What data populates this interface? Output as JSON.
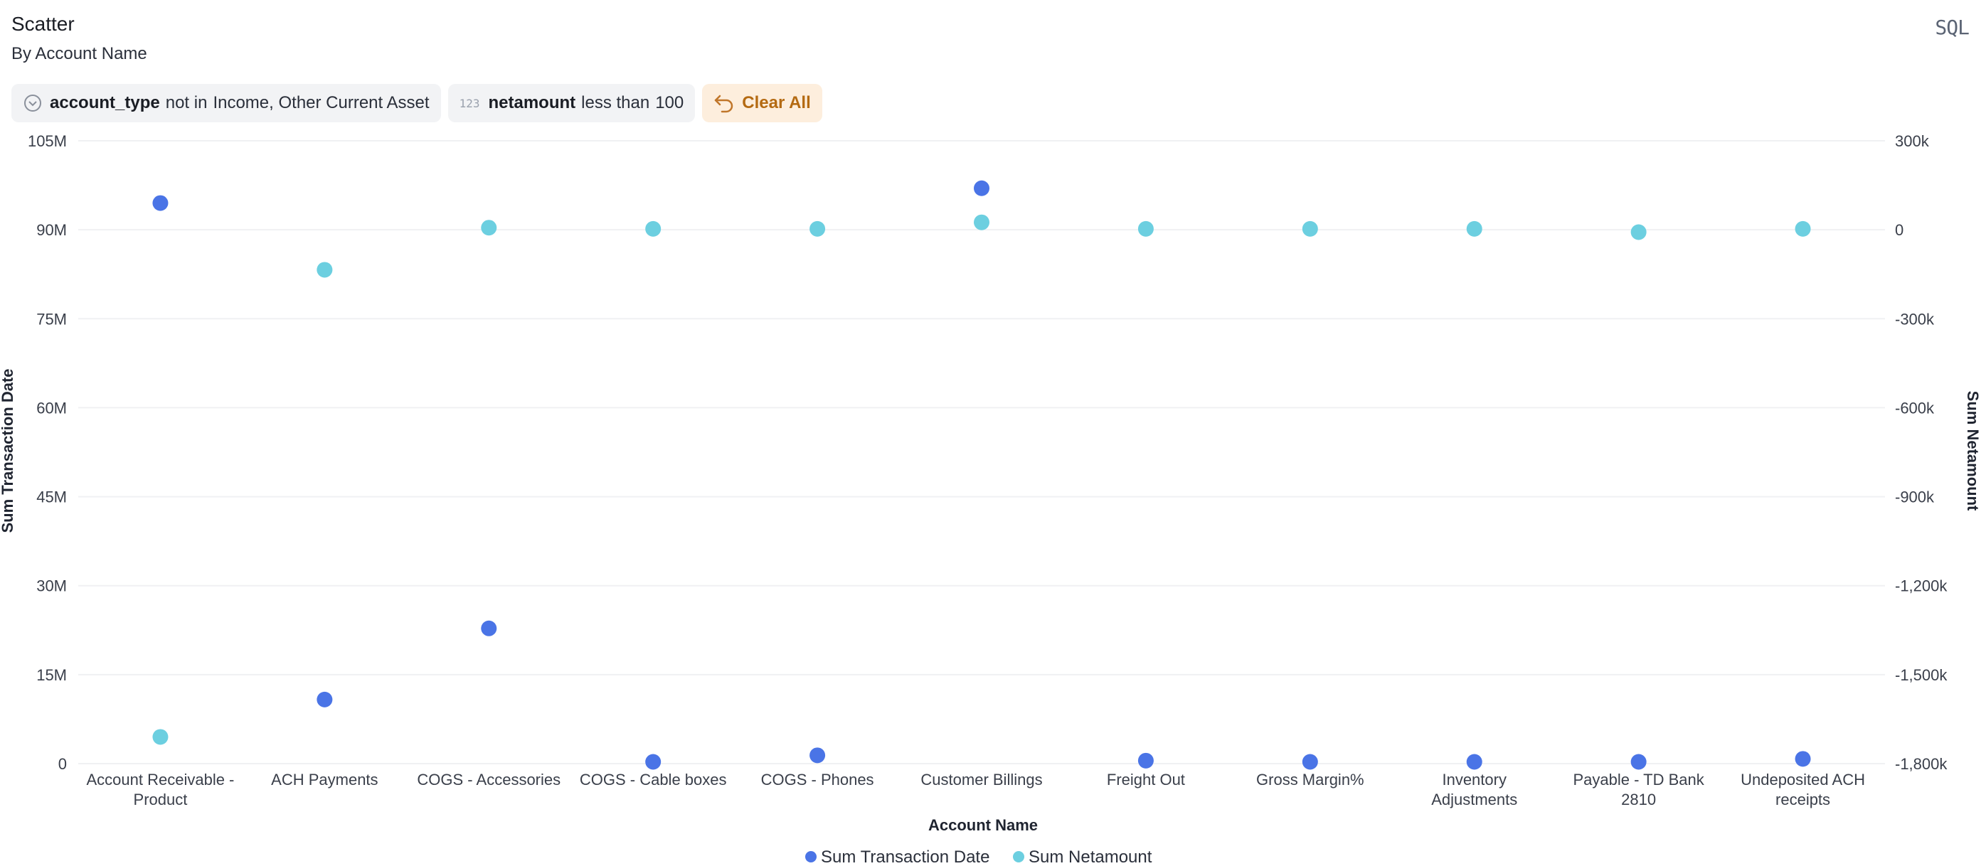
{
  "header": {
    "title": "Scatter",
    "subtitle": "By Account Name",
    "sql_label": "SQL"
  },
  "filters": [
    {
      "icon": "chevron-down-circle-icon",
      "field": "account_type",
      "condition": "not in",
      "value": "Income, Other Current Asset"
    },
    {
      "icon": "number-123-icon",
      "icon_text": "123",
      "field": "netamount",
      "condition": "less than",
      "value": "100"
    }
  ],
  "clear_all_label": "Clear All",
  "colors": {
    "series_1": "#4a74e6",
    "series_2": "#6ccfe0",
    "grid": "#f0f1f3",
    "clear_bg": "#fdeedd",
    "clear_text": "#b46a12"
  },
  "chart_data": {
    "type": "scatter",
    "xlabel": "Account Name",
    "ylabel": "Sum Transaction Date",
    "y2label": "Sum Netamount",
    "categories": [
      [
        "Account Receivable -",
        "Product"
      ],
      [
        "ACH Payments"
      ],
      [
        "COGS - Accessories"
      ],
      [
        "COGS - Cable boxes"
      ],
      [
        "COGS - Phones"
      ],
      [
        "Customer Billings"
      ],
      [
        "Freight Out"
      ],
      [
        "Gross Margin%"
      ],
      [
        "Inventory",
        "Adjustments"
      ],
      [
        "Payable - TD Bank",
        "2810"
      ],
      [
        "Undeposited ACH",
        "receipts"
      ]
    ],
    "y_ticks": [
      "0",
      "15M",
      "30M",
      "45M",
      "60M",
      "75M",
      "90M",
      "105M"
    ],
    "y2_ticks": [
      "-1,800k",
      "-1,500k",
      "-1,200k",
      "-900k",
      "-600k",
      "-300k",
      "0",
      "300k"
    ],
    "ylim": [
      0,
      105000000
    ],
    "y2lim": [
      -1800000,
      300000
    ],
    "series": [
      {
        "name": "Sum Transaction Date",
        "axis": "left",
        "values": [
          94500000,
          10800000,
          22800000,
          300000,
          1400000,
          97000000,
          500000,
          300000,
          300000,
          300000,
          800000
        ]
      },
      {
        "name": "Sum Netamount",
        "axis": "right",
        "values": [
          -1710000,
          -135000,
          7000,
          3000,
          3000,
          25000,
          3000,
          3000,
          3000,
          -8000,
          3000
        ]
      }
    ],
    "grid": true,
    "legend": "bottom-center"
  }
}
